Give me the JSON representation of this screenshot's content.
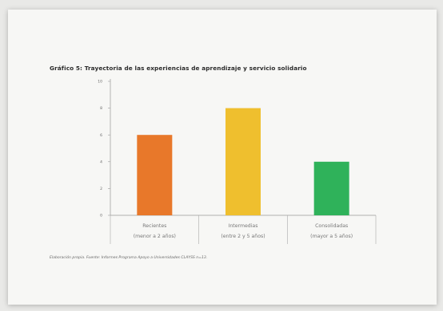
{
  "chart_data": {
    "type": "bar",
    "title": "Gráfico 5: Trayectoria de las experiencias de aprendizaje y servicio solidario",
    "categories": [
      [
        "Recientes",
        "(menor a 2 años)"
      ],
      [
        "Intermedias",
        "(entre 2 y 5 años)"
      ],
      [
        "Consolidadas",
        "(mayor a 5 años)"
      ]
    ],
    "values": [
      6,
      8,
      4
    ],
    "colors": [
      "#e8782a",
      "#efbf2e",
      "#2fb25a"
    ],
    "ylim": [
      0,
      10
    ],
    "yticks": [
      0,
      2,
      4,
      6,
      8,
      10
    ],
    "grid": false,
    "legend": "none",
    "source": "Elaboración propia. Fuente: Informes Programa Apoyo a Universidades CLAYSS n=13."
  }
}
